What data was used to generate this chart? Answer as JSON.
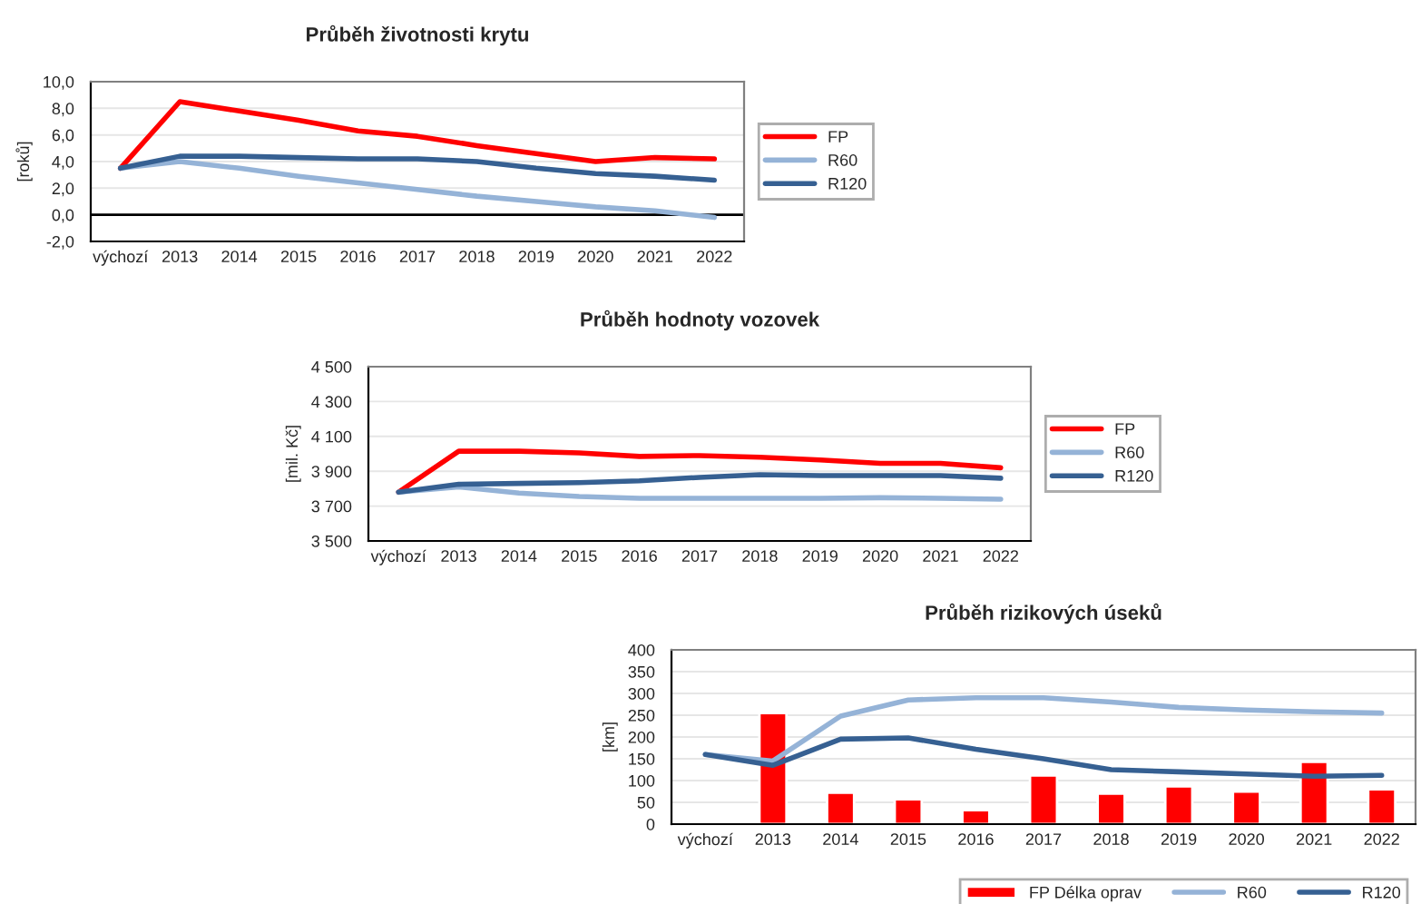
{
  "chart_data": [
    {
      "type": "line",
      "title": "Průběh životnosti krytu",
      "ylabel": "[roků]",
      "categories": [
        "výchozí",
        "2013",
        "2014",
        "2015",
        "2016",
        "2017",
        "2018",
        "2019",
        "2020",
        "2021",
        "2022"
      ],
      "series": [
        {
          "name": "FP",
          "color": "#ff0000",
          "values": [
            3.5,
            8.5,
            7.8,
            7.1,
            6.3,
            5.9,
            5.2,
            4.6,
            4.0,
            4.3,
            4.2
          ]
        },
        {
          "name": "R60",
          "color": "#95b3d7",
          "values": [
            3.5,
            4.0,
            3.5,
            2.9,
            2.4,
            1.9,
            1.4,
            1.0,
            0.6,
            0.3,
            -0.2
          ]
        },
        {
          "name": "R120",
          "color": "#366092",
          "values": [
            3.5,
            4.4,
            4.4,
            4.3,
            4.2,
            4.2,
            4.0,
            3.5,
            3.1,
            2.9,
            2.6
          ]
        }
      ],
      "ylim": [
        -2,
        10
      ],
      "yticks": [
        {
          "value": -2,
          "label": "-2,0"
        },
        {
          "value": 0,
          "label": "0,0"
        },
        {
          "value": 2,
          "label": "2,0"
        },
        {
          "value": 4,
          "label": "4,0"
        },
        {
          "value": 6,
          "label": "6,0"
        },
        {
          "value": 8,
          "label": "8,0"
        },
        {
          "value": 10,
          "label": "10,0"
        }
      ],
      "ref_lines": [
        {
          "axis": "y",
          "value": 0,
          "color": "#000000"
        }
      ],
      "grid": "y",
      "legend": "right"
    },
    {
      "type": "line",
      "title": "Průběh hodnoty vozovek",
      "ylabel": "[mil. Kč]",
      "categories": [
        "výchozí",
        "2013",
        "2014",
        "2015",
        "2016",
        "2017",
        "2018",
        "2019",
        "2020",
        "2021",
        "2022"
      ],
      "series": [
        {
          "name": "FP",
          "color": "#ff0000",
          "values": [
            3780,
            4015,
            4015,
            4005,
            3985,
            3990,
            3980,
            3965,
            3945,
            3945,
            3920
          ]
        },
        {
          "name": "R60",
          "color": "#95b3d7",
          "values": [
            3780,
            3810,
            3775,
            3755,
            3745,
            3745,
            3745,
            3745,
            3748,
            3745,
            3740
          ]
        },
        {
          "name": "R120",
          "color": "#366092",
          "values": [
            3780,
            3825,
            3830,
            3835,
            3845,
            3865,
            3880,
            3875,
            3875,
            3875,
            3860
          ]
        }
      ],
      "ylim": [
        3500,
        4500
      ],
      "yticks": [
        {
          "value": 3500,
          "label": "3 500"
        },
        {
          "value": 3700,
          "label": "3 700"
        },
        {
          "value": 3900,
          "label": "3 900"
        },
        {
          "value": 4100,
          "label": "4 100"
        },
        {
          "value": 4300,
          "label": "4 300"
        },
        {
          "value": 4500,
          "label": "4 500"
        }
      ],
      "grid": "y",
      "legend": "right"
    },
    {
      "type": "bar",
      "title": "Průběh rizikových úseků",
      "ylabel": "[km]",
      "categories": [
        "výchozí",
        "2013",
        "2014",
        "2015",
        "2016",
        "2017",
        "2018",
        "2019",
        "2020",
        "2021",
        "2022"
      ],
      "series": [
        {
          "name": "FP Délka oprav",
          "type": "bar",
          "color": "#ff0000",
          "values": [
            null,
            255,
            72,
            57,
            32,
            112,
            70,
            87,
            75,
            143,
            80
          ]
        },
        {
          "name": "R60",
          "type": "line",
          "color": "#95b3d7",
          "values": [
            160,
            145,
            248,
            285,
            290,
            290,
            280,
            268,
            262,
            258,
            255
          ]
        },
        {
          "name": "R120",
          "type": "line",
          "color": "#366092",
          "values": [
            160,
            135,
            195,
            198,
            172,
            150,
            125,
            120,
            115,
            110,
            112
          ]
        }
      ],
      "ylim": [
        0,
        400
      ],
      "yticks": [
        0,
        50,
        100,
        150,
        200,
        250,
        300,
        350,
        400
      ],
      "grid": "y",
      "legend": "bottom"
    }
  ]
}
